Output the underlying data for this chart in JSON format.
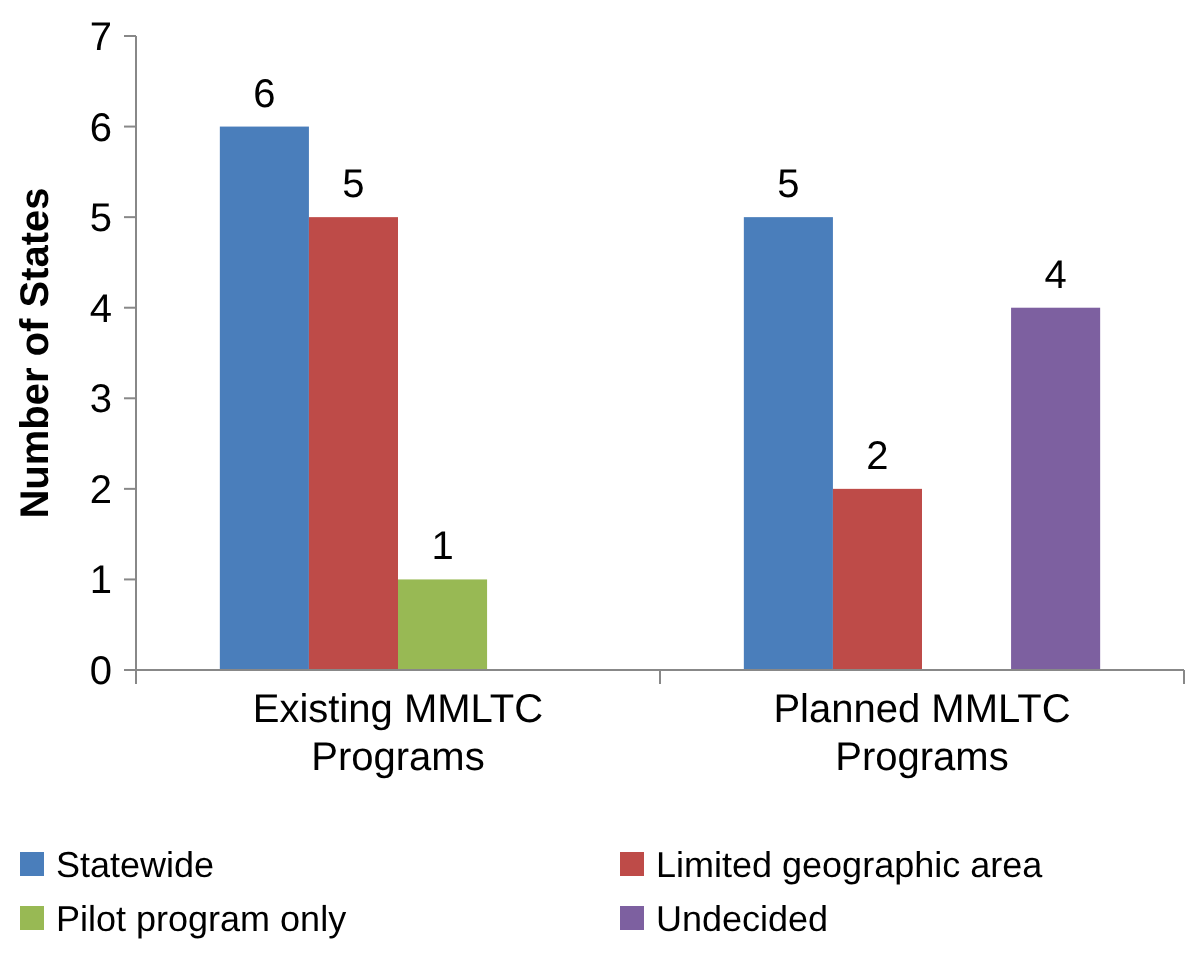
{
  "chart_data": {
    "type": "bar",
    "ylabel": "Number of States",
    "categories": [
      "Existing MMLTC Programs",
      "Planned MMLTC Programs"
    ],
    "series": [
      {
        "name": "Statewide",
        "color": "#4a7ebb",
        "values": [
          6,
          5
        ]
      },
      {
        "name": "Limited geographic area",
        "color": "#be4b48",
        "values": [
          5,
          2
        ]
      },
      {
        "name": "Pilot program only",
        "color": "#98b954",
        "values": [
          1,
          null
        ]
      },
      {
        "name": "Undecided",
        "color": "#7d60a0",
        "values": [
          null,
          4
        ]
      }
    ],
    "ylim": [
      0,
      7
    ],
    "yticks": [
      0,
      1,
      2,
      3,
      4,
      5,
      6,
      7
    ],
    "data_labels": true,
    "legend": "bottom",
    "grid": false
  }
}
